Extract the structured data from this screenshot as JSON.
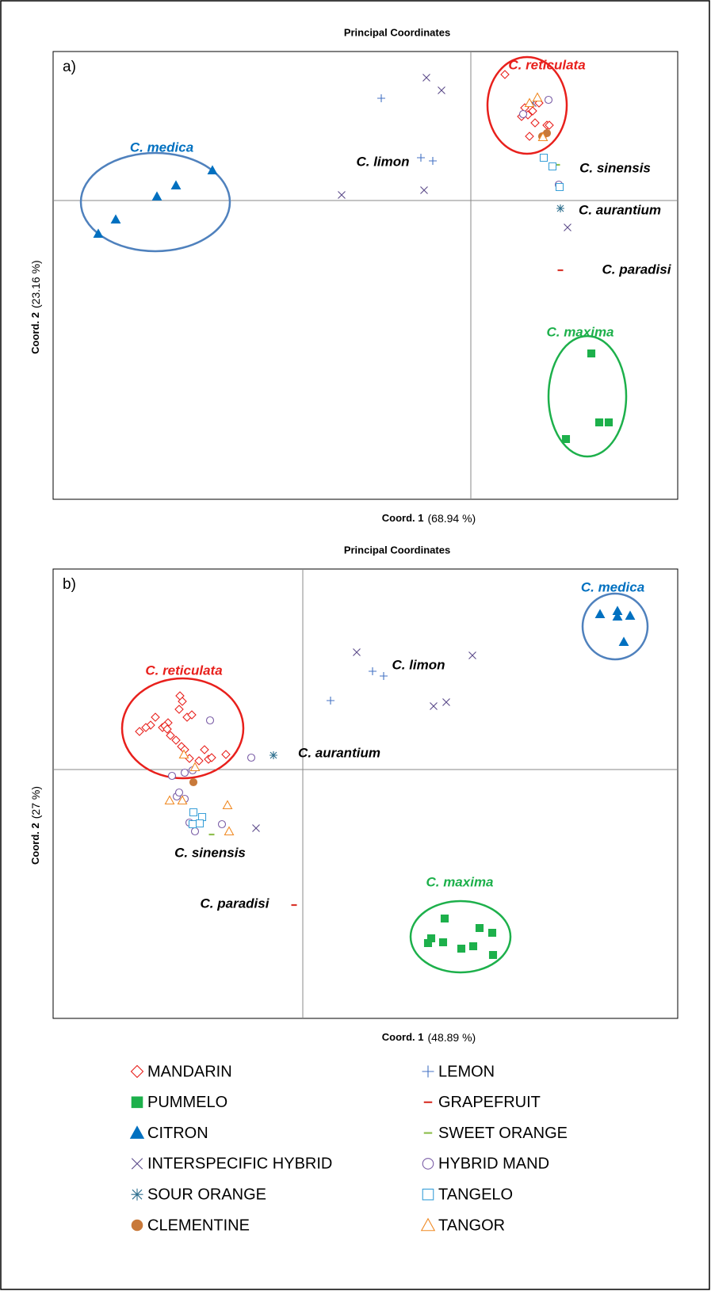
{
  "chart_data": [
    {
      "type": "scatter",
      "title": "Principal Coordinates",
      "panel": "a)",
      "xlabel": "Coord. 1",
      "xlabel_unit": "(68.94 %)",
      "ylabel": "Coord. 2",
      "ylabel_unit": "(23.16 %)",
      "xlim": [
        -5.27,
        2.61
      ],
      "ylim": [
        -3.77,
        1.88
      ],
      "series": [
        {
          "name": "MANDARIN",
          "color": "#e8201c",
          "marker": "diamond-open",
          "x": [
            0.43,
            0.68,
            0.78,
            0.86,
            0.72,
            0.64,
            0.81,
            0.96,
            0.74,
            0.91,
            0.99
          ],
          "y": [
            1.59,
            1.17,
            1.13,
            1.23,
            1.08,
            1.06,
            0.98,
            0.95,
            0.81,
            0.81,
            0.95
          ]
        },
        {
          "name": "PUMMELO",
          "color": "#1db04b",
          "marker": "square",
          "x": [
            1.52,
            1.2,
            1.62,
            1.74
          ],
          "y": [
            -1.93,
            -3.01,
            -2.8,
            -2.8
          ]
        },
        {
          "name": "CITRON",
          "color": "#0070c0",
          "marker": "triangle",
          "x": [
            -4.7,
            -4.48,
            -3.96,
            -3.72,
            -3.26
          ],
          "y": [
            -0.42,
            -0.24,
            0.05,
            0.19,
            0.38
          ]
        },
        {
          "name": "INTERSPECIFIC HYBRID",
          "color": "#5b4a8a",
          "marker": "x",
          "x": [
            -0.56,
            -0.37,
            -1.63,
            -0.59,
            1.22,
            0.78
          ],
          "y": [
            1.55,
            1.39,
            0.07,
            0.13,
            -0.34,
            1.23
          ]
        },
        {
          "name": "SOUR ORANGE",
          "color": "#2e6f8e",
          "marker": "asterisk",
          "x": [
            1.13
          ],
          "y": [
            -0.1
          ]
        },
        {
          "name": "CLEMENTINE",
          "color": "#c8793a",
          "marker": "circle",
          "x": [
            0.96,
            0.9
          ],
          "y": [
            0.85,
            0.81
          ]
        },
        {
          "name": "LEMON",
          "color": "#4472c4",
          "marker": "plus",
          "x": [
            -1.13,
            -0.63,
            -0.48
          ],
          "y": [
            1.29,
            0.54,
            0.5
          ]
        },
        {
          "name": "GRAPEFRUIT",
          "color": "#d9352b",
          "marker": "dash",
          "x": [
            1.13
          ],
          "y": [
            -0.88
          ]
        },
        {
          "name": "SWEET ORANGE",
          "color": "#8fbf4f",
          "marker": "dash",
          "x": [
            1.09
          ],
          "y": [
            0.45
          ]
        },
        {
          "name": "HYBRID MAND",
          "color": "#7b5ea7",
          "marker": "circle-open",
          "x": [
            0.66,
            0.98,
            1.11
          ],
          "y": [
            1.09,
            1.27,
            0.2
          ]
        },
        {
          "name": "TANGELO",
          "color": "#3aa0d8",
          "marker": "square-open",
          "x": [
            0.92,
            1.03,
            1.12
          ],
          "y": [
            0.54,
            0.43,
            0.17
          ]
        },
        {
          "name": "TANGOR",
          "color": "#f08a24",
          "marker": "triangle-open",
          "x": [
            0.84,
            0.74,
            0.91
          ],
          "y": [
            1.3,
            1.23,
            0.8
          ]
        }
      ],
      "annotations": [
        {
          "text": "C. reticulata",
          "x": 0.96,
          "y": 1.7,
          "color": "#e8201c"
        },
        {
          "text": "C. medica",
          "x": -3.9,
          "y": 0.66,
          "color": "#0070c0"
        },
        {
          "text": "C. limon",
          "x": -1.11,
          "y": 0.48,
          "color": "#000000"
        },
        {
          "text": "C. sinensis",
          "x": 1.82,
          "y": 0.4,
          "color": "#000000"
        },
        {
          "text": "C. aurantium",
          "x": 1.88,
          "y": -0.13,
          "color": "#000000"
        },
        {
          "text": "C. paradisi",
          "x": 2.09,
          "y": -0.88,
          "color": "#000000"
        },
        {
          "text": "C. maxima",
          "x": 1.38,
          "y": -1.67,
          "color": "#1db04b"
        }
      ]
    },
    {
      "type": "scatter",
      "title": "Principal Coordinates",
      "panel": "b)",
      "xlabel": "Coord. 1",
      "xlabel_unit": "(48.89 %)",
      "ylabel": "Coord. 2",
      "ylabel_unit": "(27 %)",
      "xlim": [
        -3.15,
        4.73
      ],
      "ylim": [
        -3.14,
        2.53
      ],
      "series": [
        {
          "x": [
            -1.55,
            -1.52,
            -1.56,
            -1.46,
            -1.4,
            -1.86,
            -1.7,
            -1.92,
            -1.98,
            -2.06,
            -1.77,
            -1.74,
            -1.71,
            -1.67,
            -1.6,
            -1.53,
            -1.49,
            -1.24,
            -1.19,
            -1.15,
            -0.97,
            -1.31,
            -1.43
          ],
          "y": [
            0.93,
            0.86,
            0.76,
            0.66,
            0.69,
            0.66,
            0.59,
            0.56,
            0.53,
            0.48,
            0.53,
            0.55,
            0.51,
            0.43,
            0.37,
            0.29,
            0.25,
            0.25,
            0.13,
            0.15,
            0.19,
            0.11,
            0.14
          ]
        },
        {
          "x": [
            1.79,
            2.23,
            2.39,
            1.62,
            1.58,
            1.77,
            2.0,
            2.15,
            2.4
          ],
          "y": [
            -1.88,
            -2.0,
            -2.06,
            -2.13,
            -2.19,
            -2.18,
            -2.26,
            -2.23,
            -2.34
          ]
        },
        {
          "x": [
            3.75,
            3.97,
            4.13,
            3.97,
            4.05
          ],
          "y": [
            1.96,
            2.0,
            1.94,
            1.93,
            1.61
          ]
        },
        {
          "x": [
            0.68,
            2.14,
            1.65,
            1.81,
            -0.59
          ],
          "y": [
            1.48,
            1.44,
            0.8,
            0.85,
            -0.74
          ]
        },
        {
          "x": [
            -0.37
          ],
          "y": [
            0.18
          ]
        },
        {
          "x": [
            -1.38
          ],
          "y": [
            -0.16
          ]
        },
        {
          "x": [
            0.88,
            1.02,
            0.35
          ],
          "y": [
            1.24,
            1.18,
            0.87
          ]
        },
        {
          "x": [
            -0.11
          ],
          "y": [
            -1.71
          ]
        },
        {
          "x": [
            -1.15
          ],
          "y": [
            -0.82
          ]
        },
        {
          "x": [
            -1.17,
            -0.65,
            -1.65,
            -1.49,
            -1.39,
            -1.59,
            -1.49,
            -1.43,
            -1.36,
            -1.02,
            -1.56
          ],
          "y": [
            0.62,
            0.15,
            -0.08,
            -0.04,
            -0.01,
            -0.34,
            -0.37,
            -0.67,
            -0.78,
            -0.69,
            -0.29
          ]
        },
        {
          "x": [
            -1.38,
            -1.27,
            -1.3,
            -1.39
          ],
          "y": [
            -0.54,
            -0.6,
            -0.68,
            -0.69
          ]
        },
        {
          "x": [
            -1.5,
            -1.36,
            -1.68,
            -1.52,
            -0.95,
            -0.93
          ],
          "y": [
            0.19,
            0.03,
            -0.39,
            -0.39,
            -0.45,
            -0.78
          ]
        }
      ],
      "annotations": [
        {
          "text": "C. medica",
          "x": 3.91,
          "y": 2.29,
          "color": "#0070c0"
        },
        {
          "text": "C. reticulata",
          "x": -1.5,
          "y": 1.24,
          "color": "#e8201c"
        },
        {
          "text": "C. limon",
          "x": 1.46,
          "y": 1.31,
          "color": "#000000"
        },
        {
          "text": "C. aurantium",
          "x": 0.46,
          "y": 0.2,
          "color": "#000000"
        },
        {
          "text": "C. sinensis",
          "x": -1.17,
          "y": -1.06,
          "color": "#000000"
        },
        {
          "text": "C. paradisi",
          "x": -0.86,
          "y": -1.7,
          "color": "#000000"
        },
        {
          "text": "C. maxima",
          "x": 1.98,
          "y": -1.43,
          "color": "#1db04b"
        }
      ]
    }
  ]
}
